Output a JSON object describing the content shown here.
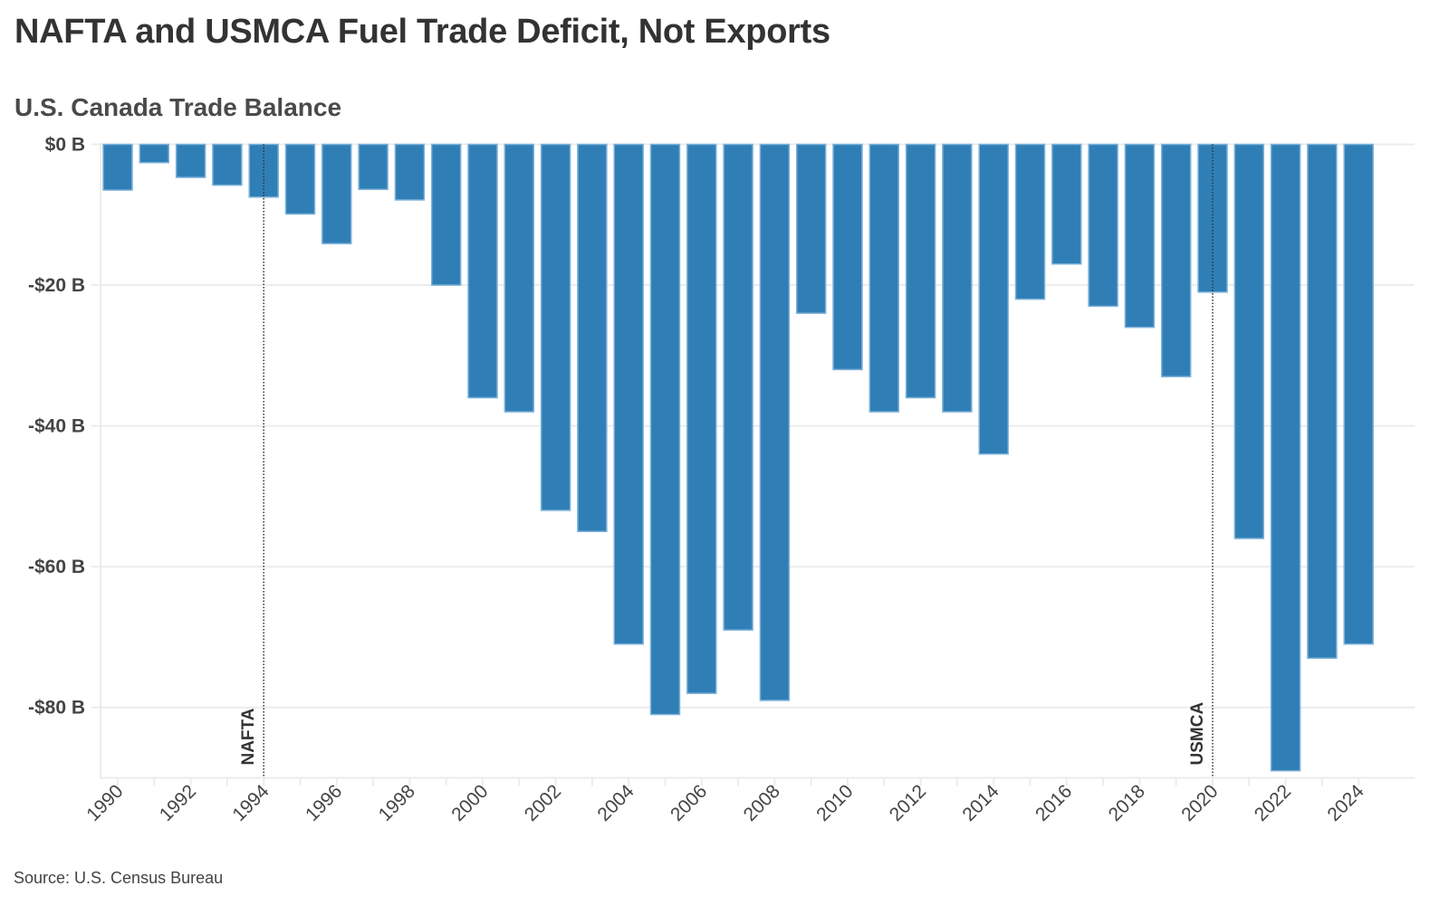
{
  "chart_data": {
    "type": "bar",
    "title": "NAFTA and USMCA Fuel Trade Deficit, Not Exports",
    "subtitle": "U.S. Canada Trade Balance",
    "xlabel": "",
    "ylabel": "",
    "source": "Source: U.S. Census Bureau",
    "categories": [
      "1990",
      "1991",
      "1992",
      "1993",
      "1994",
      "1995",
      "1996",
      "1997",
      "1998",
      "1999",
      "2000",
      "2001",
      "2002",
      "2003",
      "2004",
      "2005",
      "2006",
      "2007",
      "2008",
      "2009",
      "2010",
      "2011",
      "2012",
      "2013",
      "2014",
      "2015",
      "2016",
      "2017",
      "2018",
      "2019",
      "2020",
      "2021",
      "2022",
      "2023",
      "2024"
    ],
    "series": [
      {
        "name": "U.S. Canada Trade Balance (Fuel)",
        "unit": "$B",
        "color": "#2f7fb6",
        "border_color": "#7fb2d9",
        "values": [
          -6.5,
          -2.6,
          -4.7,
          -5.8,
          -7.5,
          -9.9,
          -14.1,
          -6.4,
          -7.9,
          -20,
          -36,
          -38,
          -52,
          -55,
          -71,
          -81,
          -78,
          -69,
          -79,
          -24,
          -32,
          -38,
          -36,
          -38,
          -44,
          -22,
          -17,
          -23,
          -26,
          -33,
          -21,
          -56,
          -89,
          -73,
          -71
        ]
      }
    ],
    "ylim": [
      -90,
      0
    ],
    "yticks": [
      0,
      -20,
      -40,
      -60,
      -80
    ],
    "ytick_labels": [
      "$0 B",
      "-$20 B",
      "-$40 B",
      "-$60 B",
      "-$80 B"
    ],
    "xtick_labels": [
      "1990",
      "1992",
      "1994",
      "1996",
      "1998",
      "2000",
      "2002",
      "2004",
      "2006",
      "2008",
      "2010",
      "2012",
      "2014",
      "2016",
      "2018",
      "2020",
      "2022",
      "2024"
    ],
    "xtick_rotation": "-45",
    "grid": "horizontal",
    "legend": "none",
    "annotations": [
      {
        "label": "NAFTA",
        "at": "1994",
        "style": "dotted vertical line"
      },
      {
        "label": "USMCA",
        "at": "2020",
        "style": "dotted vertical line"
      }
    ]
  }
}
